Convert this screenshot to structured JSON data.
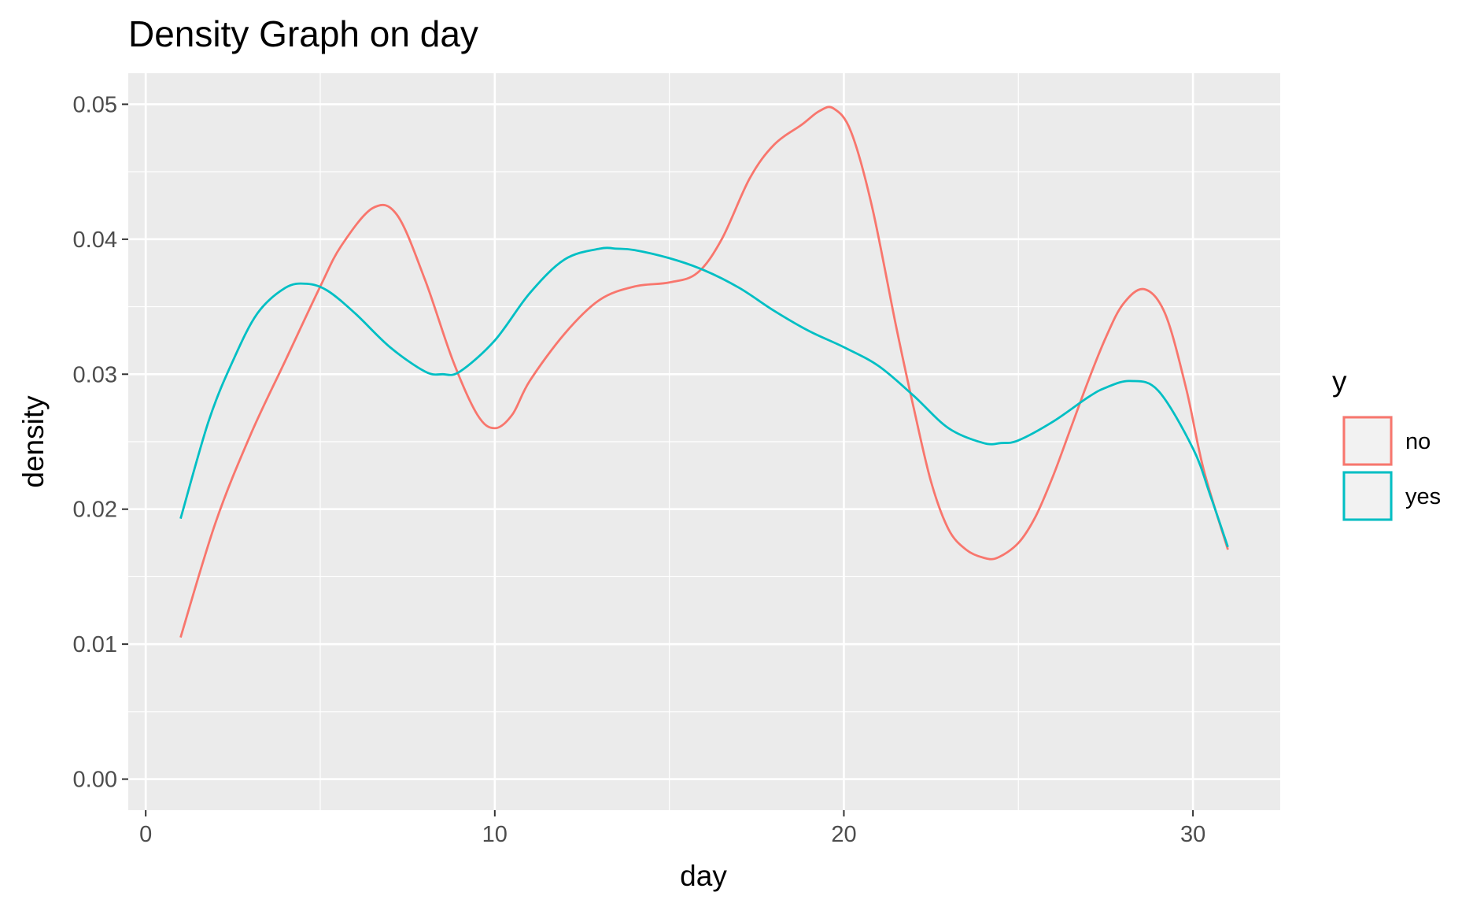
{
  "chart_data": {
    "type": "line",
    "title": "Density Graph on day",
    "xlabel": "day",
    "ylabel": "density",
    "xlim": [
      -0.5,
      32.5
    ],
    "ylim": [
      -0.0023,
      0.0523
    ],
    "x_ticks": [
      0,
      10,
      20,
      30
    ],
    "x_tick_labels": [
      "0",
      "10",
      "20",
      "30"
    ],
    "y_ticks": [
      0,
      0.01,
      0.02,
      0.03,
      0.04,
      0.05
    ],
    "y_tick_labels": [
      "0.00",
      "0.01",
      "0.02",
      "0.03",
      "0.04",
      "0.05"
    ],
    "grid": true,
    "legend": {
      "title": "y",
      "position": "right"
    },
    "colors": {
      "panel": "#ebebeb",
      "grid": "#ffffff",
      "tick": "#333333"
    },
    "series": [
      {
        "name": "no",
        "color": "#f8766d",
        "x": [
          1,
          2,
          3,
          4,
          5,
          5.6,
          6.5,
          7.2,
          8,
          8.8,
          9.5,
          10,
          10.5,
          11,
          12,
          13,
          14,
          15,
          15.8,
          16.5,
          17.3,
          18,
          18.8,
          19.3,
          19.7,
          20.2,
          20.8,
          21.5,
          22,
          22.5,
          23,
          23.5,
          24,
          24.4,
          25,
          25.5,
          26,
          26.5,
          27,
          27.5,
          28,
          28.6,
          29.2,
          29.8,
          30.3,
          31
        ],
        "y": [
          0.0105,
          0.019,
          0.0255,
          0.031,
          0.0365,
          0.0395,
          0.0423,
          0.0418,
          0.037,
          0.031,
          0.027,
          0.026,
          0.027,
          0.0295,
          0.033,
          0.0355,
          0.0365,
          0.0368,
          0.0375,
          0.04,
          0.0445,
          0.047,
          0.0485,
          0.0495,
          0.0497,
          0.048,
          0.0425,
          0.0335,
          0.0275,
          0.022,
          0.0185,
          0.017,
          0.0164,
          0.0164,
          0.0175,
          0.0195,
          0.0225,
          0.026,
          0.0295,
          0.0327,
          0.0352,
          0.0363,
          0.0345,
          0.029,
          0.023,
          0.017
        ]
      },
      {
        "name": "yes",
        "color": "#00bfc4",
        "x": [
          1,
          1.8,
          2.5,
          3.2,
          4,
          4.6,
          5.2,
          6,
          7,
          8,
          8.5,
          9,
          10,
          11,
          12,
          13,
          13.5,
          14,
          15,
          16,
          17,
          18,
          19,
          20,
          21,
          22,
          23,
          24,
          24.5,
          25,
          26,
          27,
          27.5,
          28.2,
          29,
          30,
          30.5,
          31
        ],
        "y": [
          0.0193,
          0.0265,
          0.031,
          0.0345,
          0.0364,
          0.0367,
          0.0362,
          0.0345,
          0.032,
          0.0302,
          0.03,
          0.0302,
          0.0325,
          0.036,
          0.0385,
          0.0393,
          0.0393,
          0.0392,
          0.0386,
          0.0377,
          0.0364,
          0.0347,
          0.0332,
          0.032,
          0.0306,
          0.0284,
          0.026,
          0.0249,
          0.0249,
          0.0251,
          0.0265,
          0.0283,
          0.029,
          0.0295,
          0.0288,
          0.0245,
          0.021,
          0.0172
        ]
      }
    ]
  }
}
